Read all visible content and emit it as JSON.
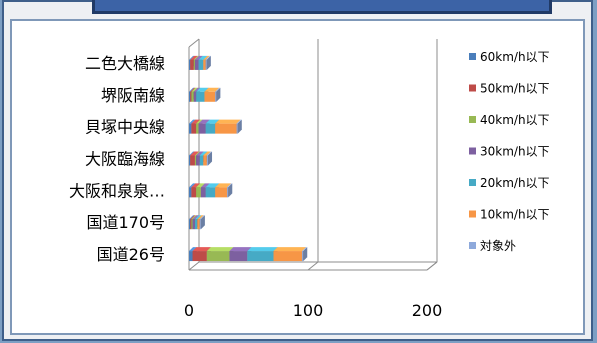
{
  "chart_data": {
    "type": "bar",
    "orientation": "horizontal",
    "stacked": true,
    "categories": [
      "国道26号",
      "国道170号",
      "大阪和泉泉…",
      "大阪臨海線",
      "貝塚中央線",
      "堺阪南線",
      "二色大橋線"
    ],
    "series": [
      {
        "name": "60km/h以下",
        "color": "#4a7ebb",
        "values": [
          3,
          1,
          2,
          1,
          2,
          1,
          1
        ]
      },
      {
        "name": "50km/h以下",
        "color": "#be4b48",
        "values": [
          12,
          1,
          4,
          4,
          4,
          1,
          3
        ]
      },
      {
        "name": "40km/h以下",
        "color": "#98b954",
        "values": [
          19,
          1,
          4,
          1,
          2,
          2,
          1
        ]
      },
      {
        "name": "30km/h以下",
        "color": "#7d60a0",
        "values": [
          15,
          2,
          4,
          3,
          6,
          2,
          3
        ]
      },
      {
        "name": "20km/h以下",
        "color": "#46aac5",
        "values": [
          22,
          2,
          8,
          3,
          8,
          7,
          4
        ]
      },
      {
        "name": "10km/h以下",
        "color": "#f79646",
        "values": [
          24,
          2,
          10,
          3,
          18,
          9,
          2
        ]
      },
      {
        "name": "対象外",
        "color": "#8ea9db",
        "values": [
          1,
          1,
          1,
          1,
          1,
          1,
          1
        ]
      }
    ],
    "xlim": [
      0,
      200
    ],
    "xticks": [
      "0",
      "100",
      "200"
    ],
    "grid": true,
    "legend_position": "right"
  }
}
